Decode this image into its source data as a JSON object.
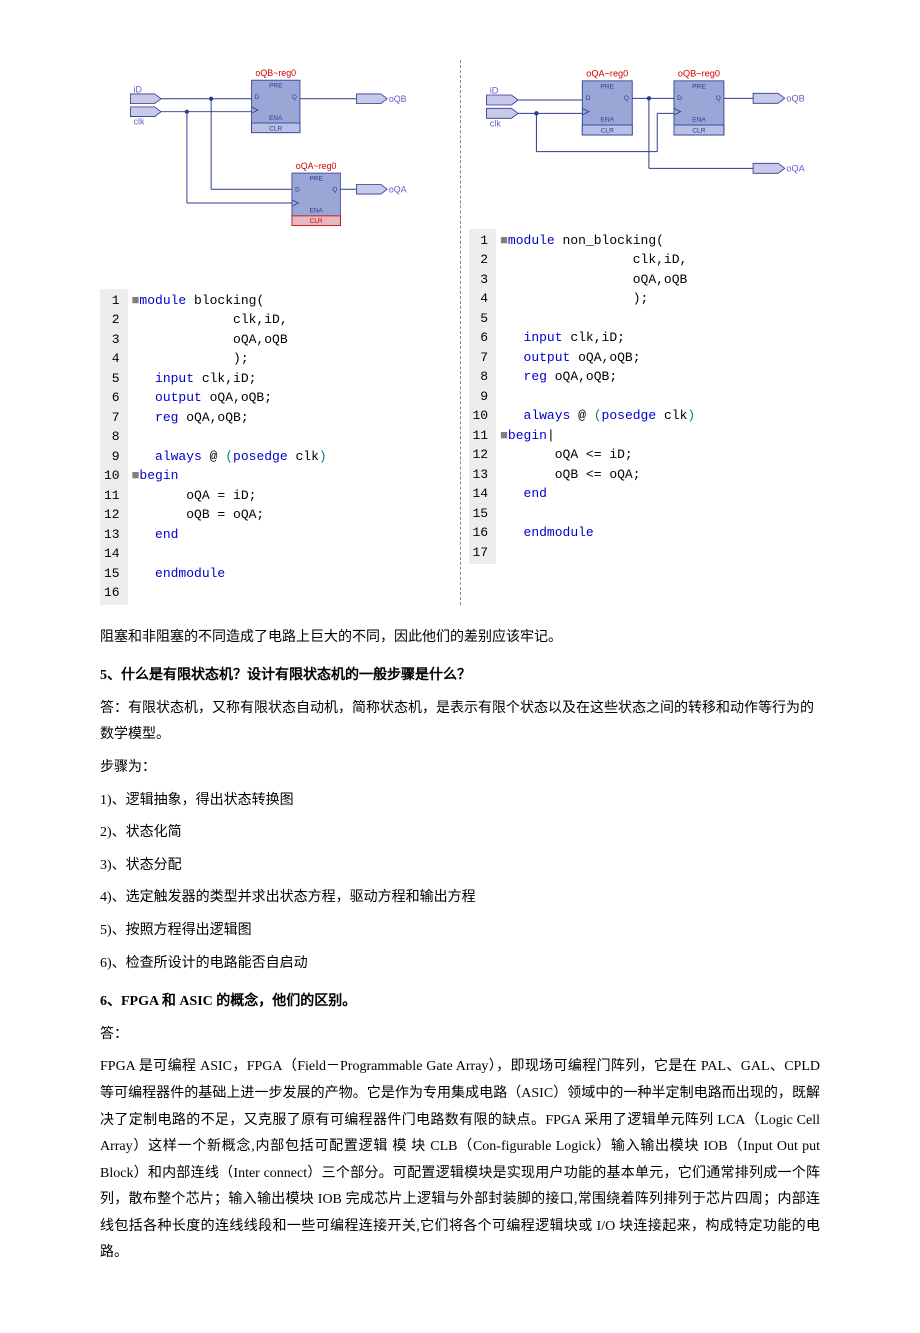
{
  "diagram_left": {
    "reg_top": {
      "label": "oQB~reg0",
      "pins": [
        "PRE",
        "D",
        "Q",
        "ENA",
        "CLR"
      ],
      "label_color": "#cc0000",
      "box_fill": "#9aa7d6",
      "box_border": "#2b3a8f"
    },
    "reg_bot": {
      "label": "oQA~reg0",
      "pins": [
        "PRE",
        "D",
        "Q",
        "ENA",
        "CLR"
      ],
      "label_color": "#cc0000",
      "box_fill": "#9aa7d6",
      "box_border": "#2b3a8f"
    },
    "inputs": [
      {
        "name": "iD",
        "color": "#6a5acd"
      },
      {
        "name": "clk",
        "color": "#6a5acd"
      }
    ],
    "outputs": [
      {
        "name": "oQB",
        "color": "#6a5acd"
      },
      {
        "name": "oQA",
        "color": "#6a5acd"
      }
    ],
    "wire_color": "#2b3a8f"
  },
  "diagram_right": {
    "reg_left": {
      "label": "oQA~reg0",
      "pins": [
        "PRE",
        "D",
        "Q",
        "ENA",
        "CLR"
      ],
      "label_color": "#cc0000",
      "box_fill": "#9aa7d6",
      "box_border": "#2b3a8f"
    },
    "reg_right": {
      "label": "oQB~reg0",
      "pins": [
        "PRE",
        "D",
        "Q",
        "ENA",
        "CLR"
      ],
      "label_color": "#cc0000",
      "box_fill": "#9aa7d6",
      "box_border": "#2b3a8f"
    },
    "inputs": [
      {
        "name": "iD",
        "color": "#6a5acd"
      },
      {
        "name": "clk",
        "color": "#6a5acd"
      }
    ],
    "outputs": [
      {
        "name": "oQB",
        "color": "#6a5acd"
      },
      {
        "name": "oQA",
        "color": "#6a5acd"
      }
    ],
    "wire_color": "#2b3a8f"
  },
  "code_left": {
    "module_name": "blocking",
    "lines": [
      {
        "n": 1,
        "seg": [
          {
            "c": "sq",
            "t": "■"
          },
          {
            "c": "kw-blue",
            "t": "module "
          },
          {
            "c": "txt-black",
            "t": "blocking("
          }
        ]
      },
      {
        "n": 2,
        "seg": [
          {
            "c": "txt-black",
            "t": "             clk,iD,"
          }
        ]
      },
      {
        "n": 3,
        "seg": [
          {
            "c": "txt-black",
            "t": "             oQA,oQB"
          }
        ]
      },
      {
        "n": 4,
        "seg": [
          {
            "c": "txt-black",
            "t": "             );"
          }
        ]
      },
      {
        "n": 5,
        "seg": [
          {
            "c": "kw-blue",
            "t": "   input "
          },
          {
            "c": "txt-black",
            "t": "clk,iD;"
          }
        ]
      },
      {
        "n": 6,
        "seg": [
          {
            "c": "kw-blue",
            "t": "   output "
          },
          {
            "c": "txt-black",
            "t": "oQA,oQB;"
          }
        ]
      },
      {
        "n": 7,
        "seg": [
          {
            "c": "kw-blue",
            "t": "   reg "
          },
          {
            "c": "txt-black",
            "t": "oQA,oQB;"
          }
        ]
      },
      {
        "n": 8,
        "seg": [
          {
            "c": "txt-black",
            "t": ""
          }
        ]
      },
      {
        "n": 9,
        "seg": [
          {
            "c": "kw-blue",
            "t": "   always "
          },
          {
            "c": "txt-black",
            "t": "@ "
          },
          {
            "c": "kw-teal",
            "t": "("
          },
          {
            "c": "kw-blue",
            "t": "posedge "
          },
          {
            "c": "txt-black",
            "t": "clk"
          },
          {
            "c": "kw-teal",
            "t": ")"
          }
        ]
      },
      {
        "n": 10,
        "seg": [
          {
            "c": "sq",
            "t": "■"
          },
          {
            "c": "kw-blue",
            "t": "begin"
          }
        ]
      },
      {
        "n": 11,
        "seg": [
          {
            "c": "txt-black",
            "t": "       oQA = iD;"
          }
        ]
      },
      {
        "n": 12,
        "seg": [
          {
            "c": "txt-black",
            "t": "       oQB = oQA;"
          }
        ]
      },
      {
        "n": 13,
        "seg": [
          {
            "c": "kw-blue",
            "t": "   end"
          }
        ]
      },
      {
        "n": 14,
        "seg": [
          {
            "c": "txt-black",
            "t": ""
          }
        ]
      },
      {
        "n": 15,
        "seg": [
          {
            "c": "kw-blue",
            "t": "   endmodule"
          }
        ]
      },
      {
        "n": 16,
        "seg": [
          {
            "c": "txt-black",
            "t": ""
          }
        ]
      }
    ]
  },
  "code_right": {
    "module_name": "non_blocking",
    "lines": [
      {
        "n": 1,
        "seg": [
          {
            "c": "sq",
            "t": "■"
          },
          {
            "c": "kw-blue",
            "t": "module "
          },
          {
            "c": "txt-black",
            "t": "non_blocking("
          }
        ]
      },
      {
        "n": 2,
        "seg": [
          {
            "c": "txt-black",
            "t": "                 clk,iD,"
          }
        ]
      },
      {
        "n": 3,
        "seg": [
          {
            "c": "txt-black",
            "t": "                 oQA,oQB"
          }
        ]
      },
      {
        "n": 4,
        "seg": [
          {
            "c": "txt-black",
            "t": "                 );"
          }
        ]
      },
      {
        "n": 5,
        "seg": [
          {
            "c": "txt-black",
            "t": ""
          }
        ]
      },
      {
        "n": 6,
        "seg": [
          {
            "c": "kw-blue",
            "t": "   input "
          },
          {
            "c": "txt-black",
            "t": "clk,iD;"
          }
        ]
      },
      {
        "n": 7,
        "seg": [
          {
            "c": "kw-blue",
            "t": "   output "
          },
          {
            "c": "txt-black",
            "t": "oQA,oQB;"
          }
        ]
      },
      {
        "n": 8,
        "seg": [
          {
            "c": "kw-blue",
            "t": "   reg "
          },
          {
            "c": "txt-black",
            "t": "oQA,oQB;"
          }
        ]
      },
      {
        "n": 9,
        "seg": [
          {
            "c": "txt-black",
            "t": ""
          }
        ]
      },
      {
        "n": 10,
        "seg": [
          {
            "c": "kw-blue",
            "t": "   always "
          },
          {
            "c": "txt-black",
            "t": "@ "
          },
          {
            "c": "kw-teal",
            "t": "("
          },
          {
            "c": "kw-blue",
            "t": "posedge "
          },
          {
            "c": "txt-black",
            "t": "clk"
          },
          {
            "c": "kw-teal",
            "t": ")"
          }
        ]
      },
      {
        "n": 11,
        "seg": [
          {
            "c": "sq",
            "t": "■"
          },
          {
            "c": "kw-blue",
            "t": "begin"
          },
          {
            "c": "txt-black",
            "t": "|"
          }
        ]
      },
      {
        "n": 12,
        "seg": [
          {
            "c": "txt-black",
            "t": "       oQA <= iD;"
          }
        ]
      },
      {
        "n": 13,
        "seg": [
          {
            "c": "txt-black",
            "t": "       oQB <= oQA;"
          }
        ]
      },
      {
        "n": 14,
        "seg": [
          {
            "c": "kw-blue",
            "t": "   end"
          }
        ]
      },
      {
        "n": 15,
        "seg": [
          {
            "c": "txt-black",
            "t": ""
          }
        ]
      },
      {
        "n": 16,
        "seg": [
          {
            "c": "kw-blue",
            "t": "   endmodule"
          }
        ]
      },
      {
        "n": 17,
        "seg": [
          {
            "c": "txt-black",
            "t": ""
          }
        ]
      }
    ]
  },
  "text": {
    "p_summary": "阻塞和非阻塞的不同造成了电路上巨大的不同，因此他们的差别应该牢记。",
    "q5_heading": "5、什么是有限状态机？设计有限状态机的一般步骤是什么？",
    "q5_answer": "答：有限状态机，又称有限状态自动机，简称状态机，是表示有限个状态以及在这些状态之间的转移和动作等行为的数学模型。",
    "q5_steps_intro": "步骤为：",
    "q5_steps": [
      "1)、逻辑抽象，得出状态转换图",
      "2)、状态化简",
      "3)、状态分配",
      "4)、选定触发器的类型并求出状态方程，驱动方程和输出方程",
      "5)、按照方程得出逻辑图",
      "6)、检查所设计的电路能否自启动"
    ],
    "q6_heading": "6、FPGA 和 ASIC 的概念，他们的区别。",
    "q6_answer_label": "答：",
    "q6_body": "FPGA 是可编程 ASIC，FPGA（Field－Programmable Gate Array），即现场可编程门阵列，它是在 PAL、GAL、CPLD 等可编程器件的基础上进一步发展的产物。它是作为专用集成电路（ASIC）领域中的一种半定制电路而出现的，既解决了定制电路的不足，又克服了原有可编程器件门电路数有限的缺点。FPGA 采用了逻辑单元阵列 LCA（Logic Cell Array）这样一个新概念,内部包括可配置逻辑 模 块 CLB（Con-figurable Logick）输入输出模块 IOB（Input Out put Block）和内部连线（Inter connect）三个部分。可配置逻辑模块是实现用户功能的基本单元，它们通常排列成一个阵列，散布整个芯片；输入输出模块 IOB 完成芯片上逻辑与外部封装脚的接口,常围绕着阵列排列于芯片四周；内部连线包括各种长度的连线线段和一些可编程连接开关,它们将各个可编程逻辑块或 I/O 块连接起来，构成特定功能的电路。"
  }
}
